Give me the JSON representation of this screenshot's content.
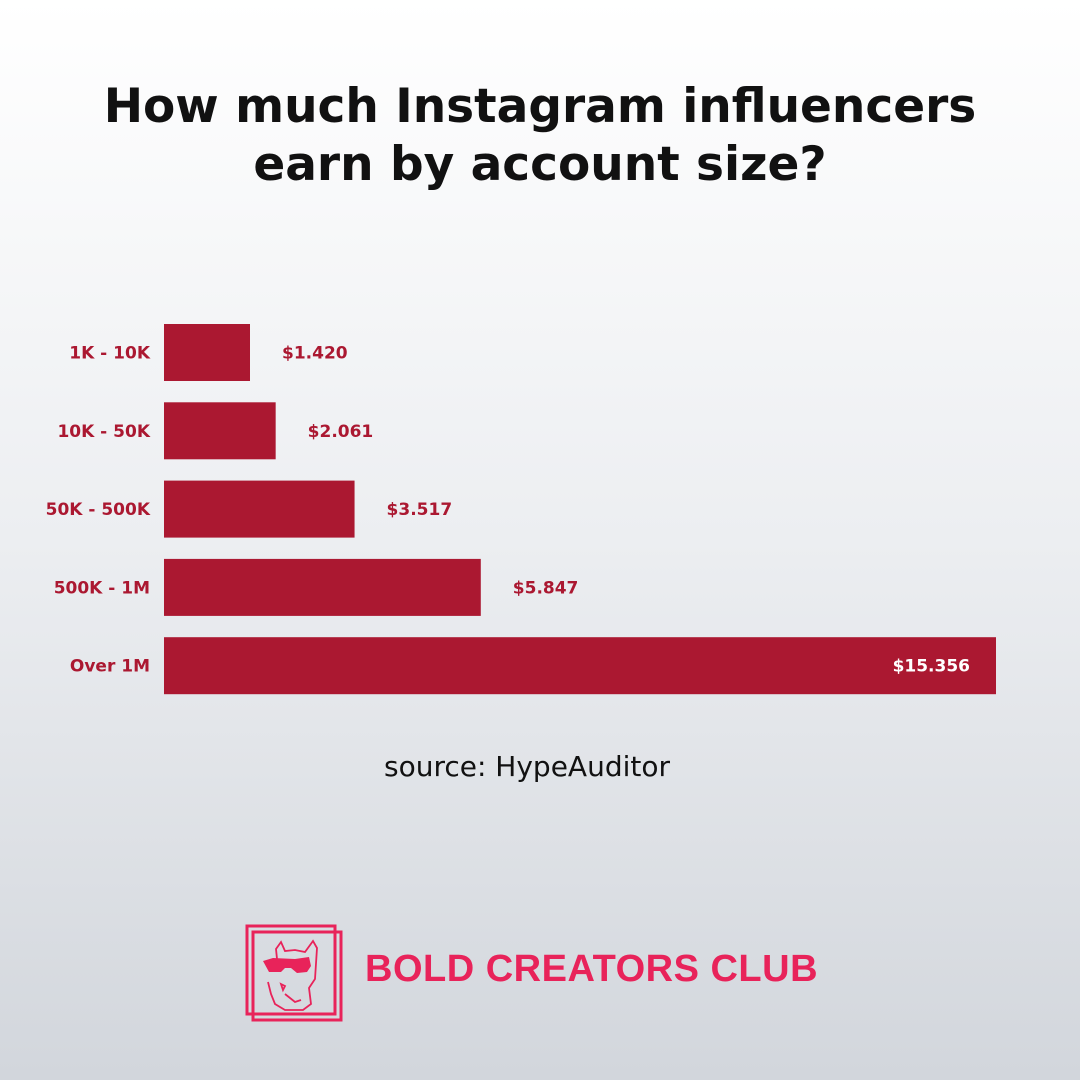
{
  "chart_data": {
    "type": "bar",
    "orientation": "horizontal",
    "title": "How much Instagram influencers earn by account size?",
    "categories": [
      "1K - 10K",
      "10K - 50K",
      "50K - 500K",
      "500K - 1M",
      "Over 1M"
    ],
    "values": [
      1420,
      2061,
      3517,
      5847,
      15356
    ],
    "data_labels": [
      "$1.420",
      "$2.061",
      "$3.517",
      "$5.847",
      "$15.356"
    ],
    "xlabel": "",
    "ylabel": "",
    "grid": false,
    "bar_color": "#ab1831",
    "label_color": "#ab1831"
  },
  "title_lines": [
    "How much Instagram influencers",
    "earn by account size?"
  ],
  "source": "source: HypeAuditor",
  "brand": {
    "name": "BOLD CREATORS CLUB",
    "color": "#e8235a",
    "logo_icon": "bulldog-sunglasses-icon"
  }
}
